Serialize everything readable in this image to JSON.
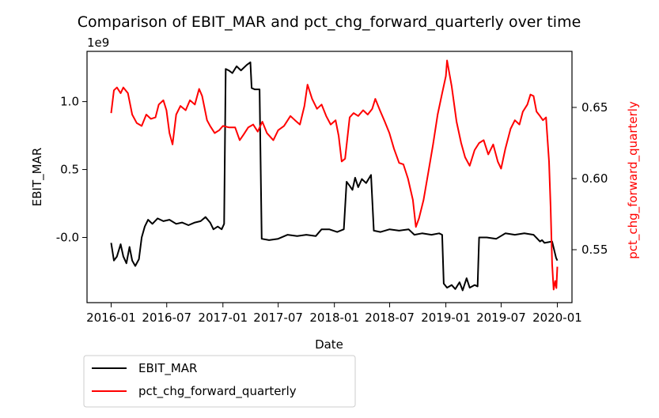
{
  "chart_data": {
    "type": "line",
    "title": "Comparison of EBIT_MAR and pct_chg_forward_quarterly over time",
    "xlabel": "Date",
    "ylabel_left": "EBIT_MAR",
    "ylabel_right": "pct_chg_forward_quarterly",
    "offset_label": "1e9",
    "xlim": [
      "2015-10-14",
      "2020-02-18"
    ],
    "ylim_left": [
      -0.48,
      1.37
    ],
    "ylim_right": [
      0.5128,
      0.6894
    ],
    "x_ticks": [
      "2016-01",
      "2016-07",
      "2017-01",
      "2017-07",
      "2018-01",
      "2018-07",
      "2019-01",
      "2019-07",
      "2020-01"
    ],
    "y_left_ticks": [
      "-0.0",
      "0.5",
      "1.0"
    ],
    "y_right_ticks": [
      "0.55",
      "0.60",
      "0.65"
    ],
    "grid": false,
    "legend_position": "bottom-left (outside plot)",
    "colors": {
      "EBIT_MAR": "#000000",
      "pct_chg_forward_quarterly": "#ff0000"
    },
    "series": [
      {
        "name": "EBIT_MAR",
        "axis": "left",
        "color": "#000000",
        "points": [
          [
            "2016-01-01",
            -0.04
          ],
          [
            "2016-01-10",
            -0.17
          ],
          [
            "2016-01-20",
            -0.14
          ],
          [
            "2016-02-01",
            -0.05
          ],
          [
            "2016-02-10",
            -0.14
          ],
          [
            "2016-02-20",
            -0.19
          ],
          [
            "2016-03-01",
            -0.07
          ],
          [
            "2016-03-10",
            -0.17
          ],
          [
            "2016-03-20",
            -0.21
          ],
          [
            "2016-04-01",
            -0.16
          ],
          [
            "2016-04-10",
            0.0
          ],
          [
            "2016-04-20",
            0.08
          ],
          [
            "2016-05-01",
            0.13
          ],
          [
            "2016-05-15",
            0.1
          ],
          [
            "2016-06-01",
            0.14
          ],
          [
            "2016-06-20",
            0.12
          ],
          [
            "2016-07-10",
            0.13
          ],
          [
            "2016-08-01",
            0.1
          ],
          [
            "2016-08-20",
            0.11
          ],
          [
            "2016-09-10",
            0.09
          ],
          [
            "2016-10-01",
            0.11
          ],
          [
            "2016-10-20",
            0.12
          ],
          [
            "2016-11-05",
            0.15
          ],
          [
            "2016-11-20",
            0.11
          ],
          [
            "2016-12-01",
            0.06
          ],
          [
            "2016-12-15",
            0.08
          ],
          [
            "2016-12-28",
            0.06
          ],
          [
            "2017-01-05",
            0.1
          ],
          [
            "2017-01-10",
            1.24
          ],
          [
            "2017-01-20",
            1.23
          ],
          [
            "2017-02-01",
            1.21
          ],
          [
            "2017-02-15",
            1.26
          ],
          [
            "2017-03-01",
            1.23
          ],
          [
            "2017-03-20",
            1.27
          ],
          [
            "2017-04-01",
            1.29
          ],
          [
            "2017-04-05",
            1.1
          ],
          [
            "2017-04-15",
            1.09
          ],
          [
            "2017-05-01",
            1.09
          ],
          [
            "2017-05-08",
            -0.01
          ],
          [
            "2017-06-01",
            -0.02
          ],
          [
            "2017-07-01",
            -0.01
          ],
          [
            "2017-08-01",
            0.02
          ],
          [
            "2017-09-01",
            0.01
          ],
          [
            "2017-10-01",
            0.02
          ],
          [
            "2017-11-01",
            0.01
          ],
          [
            "2017-11-20",
            0.06
          ],
          [
            "2017-12-15",
            0.06
          ],
          [
            "2018-01-10",
            0.04
          ],
          [
            "2018-02-01",
            0.06
          ],
          [
            "2018-02-10",
            0.41
          ],
          [
            "2018-02-20",
            0.38
          ],
          [
            "2018-03-01",
            0.35
          ],
          [
            "2018-03-10",
            0.44
          ],
          [
            "2018-03-20",
            0.37
          ],
          [
            "2018-04-01",
            0.43
          ],
          [
            "2018-04-15",
            0.4
          ],
          [
            "2018-05-01",
            0.46
          ],
          [
            "2018-05-10",
            0.05
          ],
          [
            "2018-06-01",
            0.04
          ],
          [
            "2018-07-01",
            0.06
          ],
          [
            "2018-08-01",
            0.05
          ],
          [
            "2018-09-01",
            0.06
          ],
          [
            "2018-09-20",
            0.02
          ],
          [
            "2018-10-15",
            0.03
          ],
          [
            "2018-11-15",
            0.02
          ],
          [
            "2018-12-10",
            0.03
          ],
          [
            "2018-12-20",
            0.02
          ],
          [
            "2018-12-25",
            -0.34
          ],
          [
            "2019-01-05",
            -0.37
          ],
          [
            "2019-01-20",
            -0.35
          ],
          [
            "2019-02-01",
            -0.38
          ],
          [
            "2019-02-15",
            -0.33
          ],
          [
            "2019-02-25",
            -0.39
          ],
          [
            "2019-03-10",
            -0.3
          ],
          [
            "2019-03-20",
            -0.37
          ],
          [
            "2019-04-05",
            -0.35
          ],
          [
            "2019-04-15",
            -0.36
          ],
          [
            "2019-04-20",
            0.0
          ],
          [
            "2019-05-15",
            0.0
          ],
          [
            "2019-06-15",
            -0.01
          ],
          [
            "2019-07-15",
            0.03
          ],
          [
            "2019-08-15",
            0.02
          ],
          [
            "2019-09-15",
            0.03
          ],
          [
            "2019-10-15",
            0.02
          ],
          [
            "2019-11-05",
            -0.03
          ],
          [
            "2019-11-12",
            -0.02
          ],
          [
            "2019-11-20",
            -0.04
          ],
          [
            "2019-12-15",
            -0.03
          ],
          [
            "2019-12-28",
            -0.15
          ],
          [
            "2020-01-01",
            -0.17
          ]
        ]
      },
      {
        "name": "pct_chg_forward_quarterly",
        "axis": "right",
        "color": "#ff0000",
        "points": [
          [
            "2016-01-01",
            0.646
          ],
          [
            "2016-01-10",
            0.662
          ],
          [
            "2016-01-20",
            0.664
          ],
          [
            "2016-02-01",
            0.66
          ],
          [
            "2016-02-10",
            0.664
          ],
          [
            "2016-02-25",
            0.66
          ],
          [
            "2016-03-10",
            0.645
          ],
          [
            "2016-03-25",
            0.639
          ],
          [
            "2016-04-10",
            0.637
          ],
          [
            "2016-04-25",
            0.645
          ],
          [
            "2016-05-10",
            0.642
          ],
          [
            "2016-05-25",
            0.643
          ],
          [
            "2016-06-05",
            0.652
          ],
          [
            "2016-06-20",
            0.655
          ],
          [
            "2016-06-30",
            0.648
          ],
          [
            "2016-07-10",
            0.632
          ],
          [
            "2016-07-20",
            0.624
          ],
          [
            "2016-08-01",
            0.645
          ],
          [
            "2016-08-15",
            0.651
          ],
          [
            "2016-09-01",
            0.648
          ],
          [
            "2016-09-15",
            0.655
          ],
          [
            "2016-10-01",
            0.652
          ],
          [
            "2016-10-15",
            0.663
          ],
          [
            "2016-10-25",
            0.658
          ],
          [
            "2016-11-10",
            0.641
          ],
          [
            "2016-11-20",
            0.637
          ],
          [
            "2016-12-05",
            0.632
          ],
          [
            "2016-12-20",
            0.634
          ],
          [
            "2017-01-01",
            0.637
          ],
          [
            "2017-01-20",
            0.636
          ],
          [
            "2017-02-10",
            0.636
          ],
          [
            "2017-02-25",
            0.627
          ],
          [
            "2017-03-10",
            0.631
          ],
          [
            "2017-03-25",
            0.636
          ],
          [
            "2017-04-10",
            0.638
          ],
          [
            "2017-04-25",
            0.633
          ],
          [
            "2017-05-10",
            0.64
          ],
          [
            "2017-05-25",
            0.632
          ],
          [
            "2017-06-15",
            0.627
          ],
          [
            "2017-07-01",
            0.634
          ],
          [
            "2017-07-20",
            0.637
          ],
          [
            "2017-08-10",
            0.644
          ],
          [
            "2017-08-25",
            0.641
          ],
          [
            "2017-09-10",
            0.638
          ],
          [
            "2017-09-25",
            0.651
          ],
          [
            "2017-10-05",
            0.666
          ],
          [
            "2017-10-20",
            0.656
          ],
          [
            "2017-11-05",
            0.649
          ],
          [
            "2017-11-20",
            0.652
          ],
          [
            "2017-12-05",
            0.644
          ],
          [
            "2017-12-20",
            0.638
          ],
          [
            "2018-01-05",
            0.641
          ],
          [
            "2018-01-15",
            0.63
          ],
          [
            "2018-01-25",
            0.612
          ],
          [
            "2018-02-05",
            0.614
          ],
          [
            "2018-02-20",
            0.643
          ],
          [
            "2018-03-05",
            0.646
          ],
          [
            "2018-03-20",
            0.644
          ],
          [
            "2018-04-05",
            0.648
          ],
          [
            "2018-04-20",
            0.645
          ],
          [
            "2018-05-05",
            0.649
          ],
          [
            "2018-05-15",
            0.656
          ],
          [
            "2018-05-30",
            0.648
          ],
          [
            "2018-06-15",
            0.64
          ],
          [
            "2018-06-30",
            0.632
          ],
          [
            "2018-07-15",
            0.621
          ],
          [
            "2018-08-01",
            0.611
          ],
          [
            "2018-08-15",
            0.61
          ],
          [
            "2018-08-30",
            0.6
          ],
          [
            "2018-09-15",
            0.585
          ],
          [
            "2018-09-25",
            0.566
          ],
          [
            "2018-10-05",
            0.572
          ],
          [
            "2018-10-20",
            0.585
          ],
          [
            "2018-11-05",
            0.605
          ],
          [
            "2018-11-20",
            0.624
          ],
          [
            "2018-12-05",
            0.645
          ],
          [
            "2018-12-20",
            0.66
          ],
          [
            "2019-01-01",
            0.672
          ],
          [
            "2019-01-05",
            0.683
          ],
          [
            "2019-01-20",
            0.665
          ],
          [
            "2019-02-05",
            0.64
          ],
          [
            "2019-02-20",
            0.625
          ],
          [
            "2019-03-05",
            0.615
          ],
          [
            "2019-03-20",
            0.609
          ],
          [
            "2019-04-05",
            0.62
          ],
          [
            "2019-04-20",
            0.625
          ],
          [
            "2019-05-05",
            0.627
          ],
          [
            "2019-05-20",
            0.617
          ],
          [
            "2019-06-05",
            0.624
          ],
          [
            "2019-06-20",
            0.612
          ],
          [
            "2019-07-01",
            0.607
          ],
          [
            "2019-07-15",
            0.621
          ],
          [
            "2019-08-01",
            0.635
          ],
          [
            "2019-08-15",
            0.641
          ],
          [
            "2019-08-30",
            0.638
          ],
          [
            "2019-09-10",
            0.647
          ],
          [
            "2019-09-25",
            0.652
          ],
          [
            "2019-10-05",
            0.659
          ],
          [
            "2019-10-15",
            0.658
          ],
          [
            "2019-10-25",
            0.647
          ],
          [
            "2019-11-05",
            0.644
          ],
          [
            "2019-11-15",
            0.641
          ],
          [
            "2019-11-25",
            0.643
          ],
          [
            "2019-12-05",
            0.612
          ],
          [
            "2019-12-10",
            0.58
          ],
          [
            "2019-12-15",
            0.54
          ],
          [
            "2019-12-20",
            0.522
          ],
          [
            "2019-12-25",
            0.528
          ],
          [
            "2019-12-29",
            0.523
          ],
          [
            "2020-01-01",
            0.538
          ]
        ]
      }
    ]
  }
}
